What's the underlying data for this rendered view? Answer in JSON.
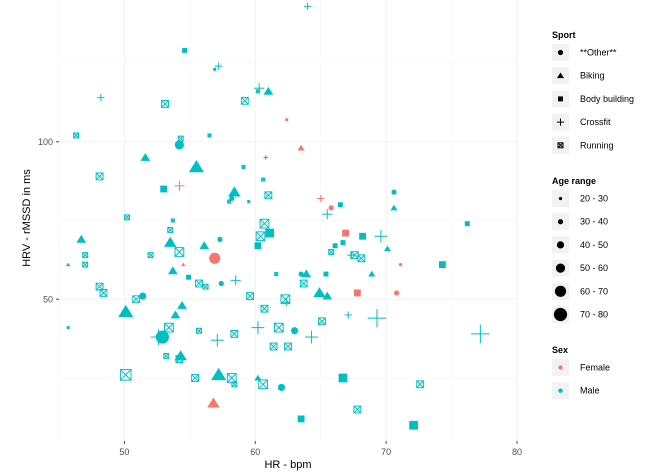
{
  "chart_data": {
    "type": "scatter",
    "xlabel": "HR - bpm",
    "ylabel": "HRV - rMSSD in ms",
    "xlim": [
      45,
      80
    ],
    "ylim": [
      5,
      145
    ],
    "x_ticks": [
      50,
      60,
      70,
      80
    ],
    "y_ticks": [
      50,
      100
    ],
    "grid": true,
    "colors": {
      "Female": "#F8766D",
      "Male": "#00BFC4"
    },
    "legend": {
      "placement": "right",
      "groups": [
        {
          "title": "Sport",
          "kind": "shape",
          "items": [
            {
              "label": "**Other**",
              "shape": "circle"
            },
            {
              "label": "Biking",
              "shape": "triangle"
            },
            {
              "label": "Body building",
              "shape": "square"
            },
            {
              "label": "Crossfit",
              "shape": "plus"
            },
            {
              "label": "Running",
              "shape": "boxx"
            }
          ]
        },
        {
          "title": "Age range",
          "kind": "size",
          "items": [
            {
              "label": "20 - 30",
              "size": 1
            },
            {
              "label": "30 - 40",
              "size": 2
            },
            {
              "label": "40 - 50",
              "size": 3
            },
            {
              "label": "50 - 60",
              "size": 4
            },
            {
              "label": "60 - 70",
              "size": 5
            },
            {
              "label": "70 - 80",
              "size": 6
            }
          ]
        },
        {
          "title": "Sex",
          "kind": "color",
          "items": [
            {
              "label": "Female",
              "color": "#F8766D"
            },
            {
              "label": "Male",
              "color": "#00BFC4"
            }
          ]
        }
      ]
    },
    "points": [
      {
        "x": 54.6,
        "y": 129,
        "shape": "square",
        "size": 2,
        "sex": "Male"
      },
      {
        "x": 56.9,
        "y": 123,
        "shape": "square",
        "size": 1,
        "sex": "Male"
      },
      {
        "x": 57.2,
        "y": 124,
        "shape": "plus",
        "size": 2,
        "sex": "Male"
      },
      {
        "x": 64.0,
        "y": 143,
        "shape": "plus",
        "size": 2,
        "sex": "Male"
      },
      {
        "x": 60.2,
        "y": 116,
        "shape": "boxx",
        "size": 1,
        "sex": "Male"
      },
      {
        "x": 60.3,
        "y": 117,
        "shape": "plus",
        "size": 3,
        "sex": "Male"
      },
      {
        "x": 61.0,
        "y": 116,
        "shape": "triangle",
        "size": 3,
        "sex": "Male"
      },
      {
        "x": 48.2,
        "y": 114,
        "shape": "plus",
        "size": 2,
        "sex": "Male"
      },
      {
        "x": 53.1,
        "y": 112,
        "shape": "boxx",
        "size": 3,
        "sex": "Male"
      },
      {
        "x": 59.2,
        "y": 113,
        "shape": "boxx",
        "size": 3,
        "sex": "Male"
      },
      {
        "x": 62.4,
        "y": 107,
        "shape": "circle",
        "size": 1,
        "sex": "Female"
      },
      {
        "x": 46.3,
        "y": 102,
        "shape": "boxx",
        "size": 2,
        "sex": "Male"
      },
      {
        "x": 54.3,
        "y": 101,
        "shape": "boxx",
        "size": 2,
        "sex": "Male"
      },
      {
        "x": 56.5,
        "y": 102,
        "shape": "boxx",
        "size": 1,
        "sex": "Male"
      },
      {
        "x": 54.2,
        "y": 99,
        "shape": "circle",
        "size": 4,
        "sex": "Male"
      },
      {
        "x": 63.5,
        "y": 98,
        "shape": "triangle",
        "size": 2,
        "sex": "Female"
      },
      {
        "x": 60.8,
        "y": 95,
        "shape": "plus",
        "size": 1,
        "sex": "Male"
      },
      {
        "x": 51.6,
        "y": 95,
        "shape": "triangle",
        "size": 3,
        "sex": "Male"
      },
      {
        "x": 55.5,
        "y": 92,
        "shape": "triangle",
        "size": 5,
        "sex": "Male"
      },
      {
        "x": 59.1,
        "y": 92,
        "shape": "boxx",
        "size": 1,
        "sex": "Male"
      },
      {
        "x": 48.1,
        "y": 89,
        "shape": "boxx",
        "size": 3,
        "sex": "Male"
      },
      {
        "x": 60.6,
        "y": 88,
        "shape": "boxx",
        "size": 1,
        "sex": "Male"
      },
      {
        "x": 53.0,
        "y": 85,
        "shape": "square",
        "size": 3,
        "sex": "Male"
      },
      {
        "x": 54.2,
        "y": 86,
        "shape": "plus",
        "size": 3,
        "sex": "Female"
      },
      {
        "x": 58.4,
        "y": 84,
        "shape": "triangle",
        "size": 4,
        "sex": "Male"
      },
      {
        "x": 58.2,
        "y": 82,
        "shape": "circle",
        "size": 2,
        "sex": "Male"
      },
      {
        "x": 61.0,
        "y": 83,
        "shape": "boxx",
        "size": 3,
        "sex": "Male"
      },
      {
        "x": 58.0,
        "y": 81,
        "shape": "boxx",
        "size": 1,
        "sex": "Male"
      },
      {
        "x": 59.5,
        "y": 81,
        "shape": "square",
        "size": 1,
        "sex": "Male"
      },
      {
        "x": 65.0,
        "y": 82,
        "shape": "plus",
        "size": 2,
        "sex": "Female"
      },
      {
        "x": 65.8,
        "y": 79,
        "shape": "circle",
        "size": 2,
        "sex": "Female"
      },
      {
        "x": 66.5,
        "y": 80,
        "shape": "square",
        "size": 2,
        "sex": "Male"
      },
      {
        "x": 70.6,
        "y": 84,
        "shape": "circle",
        "size": 2,
        "sex": "Male"
      },
      {
        "x": 70.6,
        "y": 79,
        "shape": "triangle",
        "size": 2,
        "sex": "Male"
      },
      {
        "x": 65.5,
        "y": 77,
        "shape": "plus",
        "size": 3,
        "sex": "Male"
      },
      {
        "x": 50.2,
        "y": 76,
        "shape": "boxx",
        "size": 2,
        "sex": "Male"
      },
      {
        "x": 53.7,
        "y": 75,
        "shape": "boxx",
        "size": 1,
        "sex": "Male"
      },
      {
        "x": 60.7,
        "y": 74,
        "shape": "boxx",
        "size": 4,
        "sex": "Male"
      },
      {
        "x": 76.2,
        "y": 74,
        "shape": "square",
        "size": 2,
        "sex": "Male"
      },
      {
        "x": 53.5,
        "y": 72,
        "shape": "boxx",
        "size": 2,
        "sex": "Male"
      },
      {
        "x": 61.1,
        "y": 71,
        "shape": "square",
        "size": 4,
        "sex": "Male"
      },
      {
        "x": 60.4,
        "y": 70,
        "shape": "boxx",
        "size": 4,
        "sex": "Male"
      },
      {
        "x": 66.9,
        "y": 71,
        "shape": "square",
        "size": 3,
        "sex": "Female"
      },
      {
        "x": 68.2,
        "y": 70,
        "shape": "square",
        "size": 3,
        "sex": "Male"
      },
      {
        "x": 69.6,
        "y": 70,
        "shape": "plus",
        "size": 4,
        "sex": "Male"
      },
      {
        "x": 46.7,
        "y": 69,
        "shape": "triangle",
        "size": 3,
        "sex": "Male"
      },
      {
        "x": 53.5,
        "y": 68,
        "shape": "triangle",
        "size": 4,
        "sex": "Male"
      },
      {
        "x": 56.1,
        "y": 67,
        "shape": "triangle",
        "size": 3,
        "sex": "Male"
      },
      {
        "x": 57.3,
        "y": 69,
        "shape": "circle",
        "size": 2,
        "sex": "Male"
      },
      {
        "x": 60.2,
        "y": 67,
        "shape": "square",
        "size": 3,
        "sex": "Male"
      },
      {
        "x": 66.1,
        "y": 67,
        "shape": "square",
        "size": 2,
        "sex": "Male"
      },
      {
        "x": 66.7,
        "y": 68,
        "shape": "square",
        "size": 2,
        "sex": "Male"
      },
      {
        "x": 70.1,
        "y": 66,
        "shape": "triangle",
        "size": 2,
        "sex": "Male"
      },
      {
        "x": 65.8,
        "y": 65,
        "shape": "boxx",
        "size": 2,
        "sex": "Male"
      },
      {
        "x": 47.0,
        "y": 64,
        "shape": "boxx",
        "size": 2,
        "sex": "Male"
      },
      {
        "x": 52.0,
        "y": 64,
        "shape": "boxx",
        "size": 2,
        "sex": "Male"
      },
      {
        "x": 54.2,
        "y": 65,
        "shape": "boxx",
        "size": 4,
        "sex": "Male"
      },
      {
        "x": 56.9,
        "y": 63,
        "shape": "circle",
        "size": 5,
        "sex": "Female"
      },
      {
        "x": 67.3,
        "y": 64,
        "shape": "plus",
        "size": 2,
        "sex": "Male"
      },
      {
        "x": 67.6,
        "y": 64,
        "shape": "boxx",
        "size": 3,
        "sex": "Male"
      },
      {
        "x": 68.1,
        "y": 63,
        "shape": "boxx",
        "size": 3,
        "sex": "Male"
      },
      {
        "x": 45.7,
        "y": 61,
        "shape": "triangle",
        "size": 1,
        "sex": "Male"
      },
      {
        "x": 47.0,
        "y": 61,
        "shape": "boxx",
        "size": 2,
        "sex": "Male"
      },
      {
        "x": 54.5,
        "y": 61,
        "shape": "triangle",
        "size": 1,
        "sex": "Female"
      },
      {
        "x": 71.1,
        "y": 61,
        "shape": "circle",
        "size": 1,
        "sex": "Female"
      },
      {
        "x": 74.3,
        "y": 61,
        "shape": "square",
        "size": 3,
        "sex": "Male"
      },
      {
        "x": 53.7,
        "y": 59,
        "shape": "triangle",
        "size": 3,
        "sex": "Male"
      },
      {
        "x": 63.5,
        "y": 58,
        "shape": "circle",
        "size": 2,
        "sex": "Male"
      },
      {
        "x": 63.9,
        "y": 58,
        "shape": "triangle",
        "size": 3,
        "sex": "Male"
      },
      {
        "x": 65.4,
        "y": 58,
        "shape": "square",
        "size": 2,
        "sex": "Male"
      },
      {
        "x": 68.9,
        "y": 58,
        "shape": "triangle",
        "size": 2,
        "sex": "Male"
      },
      {
        "x": 61.6,
        "y": 58,
        "shape": "boxx",
        "size": 1,
        "sex": "Male"
      },
      {
        "x": 54.9,
        "y": 57,
        "shape": "square",
        "size": 2,
        "sex": "Male"
      },
      {
        "x": 55.7,
        "y": 55,
        "shape": "boxx",
        "size": 3,
        "sex": "Male"
      },
      {
        "x": 56.2,
        "y": 54,
        "shape": "boxx",
        "size": 2,
        "sex": "Male"
      },
      {
        "x": 57.4,
        "y": 55,
        "shape": "circle",
        "size": 2,
        "sex": "Male"
      },
      {
        "x": 58.5,
        "y": 56,
        "shape": "plus",
        "size": 3,
        "sex": "Male"
      },
      {
        "x": 63.7,
        "y": 55,
        "shape": "boxx",
        "size": 3,
        "sex": "Male"
      },
      {
        "x": 48.1,
        "y": 54,
        "shape": "boxx",
        "size": 3,
        "sex": "Male"
      },
      {
        "x": 48.4,
        "y": 52,
        "shape": "boxx",
        "size": 3,
        "sex": "Male"
      },
      {
        "x": 50.9,
        "y": 50,
        "shape": "boxx",
        "size": 3,
        "sex": "Male"
      },
      {
        "x": 51.4,
        "y": 51,
        "shape": "circle",
        "size": 3,
        "sex": "Male"
      },
      {
        "x": 59.6,
        "y": 51,
        "shape": "boxx",
        "size": 3,
        "sex": "Male"
      },
      {
        "x": 64.9,
        "y": 52,
        "shape": "triangle",
        "size": 4,
        "sex": "Male"
      },
      {
        "x": 65.5,
        "y": 51,
        "shape": "triangle",
        "size": 3,
        "sex": "Male"
      },
      {
        "x": 67.8,
        "y": 52,
        "shape": "square",
        "size": 3,
        "sex": "Female"
      },
      {
        "x": 70.8,
        "y": 52,
        "shape": "circle",
        "size": 2,
        "sex": "Female"
      },
      {
        "x": 62.3,
        "y": 50,
        "shape": "boxx",
        "size": 4,
        "sex": "Male"
      },
      {
        "x": 62.4,
        "y": 49,
        "shape": "plus",
        "size": 2,
        "sex": "Male"
      },
      {
        "x": 54.4,
        "y": 48,
        "shape": "triangle",
        "size": 3,
        "sex": "Male"
      },
      {
        "x": 60.7,
        "y": 47,
        "shape": "boxx",
        "size": 3,
        "sex": "Male"
      },
      {
        "x": 50.1,
        "y": 46,
        "shape": "triangle",
        "size": 5,
        "sex": "Male"
      },
      {
        "x": 53.9,
        "y": 45,
        "shape": "triangle",
        "size": 3,
        "sex": "Male"
      },
      {
        "x": 65.1,
        "y": 43,
        "shape": "boxx",
        "size": 3,
        "sex": "Male"
      },
      {
        "x": 67.1,
        "y": 45,
        "shape": "plus",
        "size": 2,
        "sex": "Male"
      },
      {
        "x": 69.3,
        "y": 44,
        "shape": "plus",
        "size": 6,
        "sex": "Male"
      },
      {
        "x": 77.2,
        "y": 39,
        "shape": "plus",
        "size": 6,
        "sex": "Male"
      },
      {
        "x": 45.7,
        "y": 41,
        "shape": "circle",
        "size": 1,
        "sex": "Male"
      },
      {
        "x": 53.4,
        "y": 41,
        "shape": "boxx",
        "size": 4,
        "sex": "Male"
      },
      {
        "x": 55.7,
        "y": 40,
        "shape": "boxx",
        "size": 2,
        "sex": "Male"
      },
      {
        "x": 60.2,
        "y": 41,
        "shape": "plus",
        "size": 4,
        "sex": "Male"
      },
      {
        "x": 61.8,
        "y": 41,
        "shape": "boxx",
        "size": 4,
        "sex": "Male"
      },
      {
        "x": 63.0,
        "y": 40,
        "shape": "circle",
        "size": 3,
        "sex": "Male"
      },
      {
        "x": 52.6,
        "y": 38,
        "shape": "plus",
        "size": 5,
        "sex": "Male"
      },
      {
        "x": 52.9,
        "y": 38,
        "shape": "circle",
        "size": 6,
        "sex": "Male"
      },
      {
        "x": 57.1,
        "y": 37,
        "shape": "plus",
        "size": 4,
        "sex": "Male"
      },
      {
        "x": 58.4,
        "y": 39,
        "shape": "boxx",
        "size": 3,
        "sex": "Male"
      },
      {
        "x": 64.3,
        "y": 38,
        "shape": "plus",
        "size": 4,
        "sex": "Male"
      },
      {
        "x": 61.4,
        "y": 35,
        "shape": "boxx",
        "size": 3,
        "sex": "Male"
      },
      {
        "x": 62.5,
        "y": 35,
        "shape": "boxx",
        "size": 3,
        "sex": "Male"
      },
      {
        "x": 53.2,
        "y": 32,
        "shape": "boxx",
        "size": 2,
        "sex": "Male"
      },
      {
        "x": 54.2,
        "y": 31,
        "shape": "boxx",
        "size": 3,
        "sex": "Male"
      },
      {
        "x": 54.3,
        "y": 32,
        "shape": "triangle",
        "size": 4,
        "sex": "Male"
      },
      {
        "x": 50.1,
        "y": 26,
        "shape": "boxx",
        "size": 5,
        "sex": "Male"
      },
      {
        "x": 55.4,
        "y": 25,
        "shape": "boxx",
        "size": 3,
        "sex": "Male"
      },
      {
        "x": 57.2,
        "y": 26,
        "shape": "triangle",
        "size": 5,
        "sex": "Male"
      },
      {
        "x": 58.2,
        "y": 25,
        "shape": "boxx",
        "size": 4,
        "sex": "Male"
      },
      {
        "x": 58.4,
        "y": 23,
        "shape": "boxx",
        "size": 2,
        "sex": "Male"
      },
      {
        "x": 60.2,
        "y": 25,
        "shape": "triangle",
        "size": 2,
        "sex": "Male"
      },
      {
        "x": 60.6,
        "y": 23,
        "shape": "boxx",
        "size": 4,
        "sex": "Male"
      },
      {
        "x": 62.0,
        "y": 22,
        "shape": "circle",
        "size": 3,
        "sex": "Male"
      },
      {
        "x": 66.7,
        "y": 25,
        "shape": "square",
        "size": 4,
        "sex": "Male"
      },
      {
        "x": 72.6,
        "y": 23,
        "shape": "boxx",
        "size": 3,
        "sex": "Male"
      },
      {
        "x": 56.8,
        "y": 17,
        "shape": "triangle",
        "size": 4,
        "sex": "Female"
      },
      {
        "x": 63.5,
        "y": 12,
        "shape": "square",
        "size": 3,
        "sex": "Male"
      },
      {
        "x": 67.8,
        "y": 15,
        "shape": "boxx",
        "size": 3,
        "sex": "Male"
      },
      {
        "x": 72.1,
        "y": 10,
        "shape": "square",
        "size": 4,
        "sex": "Male"
      }
    ]
  }
}
